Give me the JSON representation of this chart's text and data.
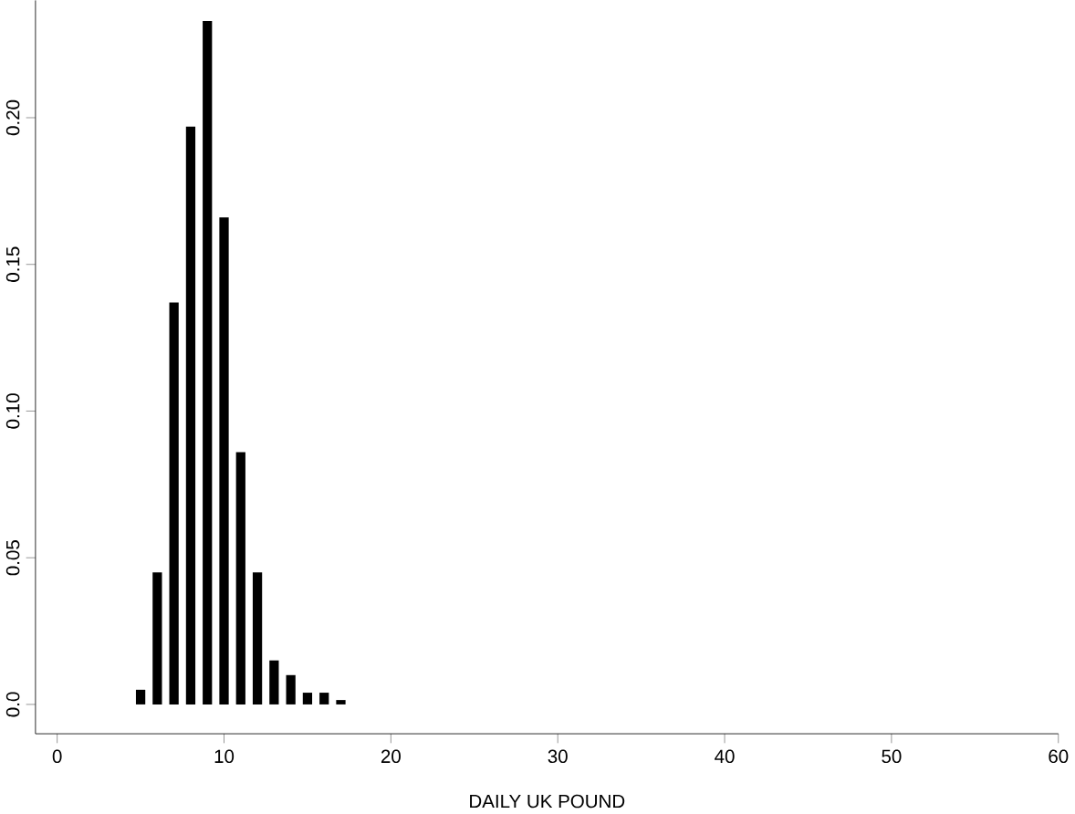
{
  "chart_data": {
    "type": "bar",
    "xlabel": "DAILY UK POUND",
    "x": [
      5,
      6,
      7,
      8,
      9,
      10,
      11,
      12,
      13,
      14,
      15,
      16,
      17
    ],
    "values": [
      0.005,
      0.045,
      0.137,
      0.197,
      0.233,
      0.166,
      0.086,
      0.045,
      0.015,
      0.01,
      0.004,
      0.004,
      0.0015
    ],
    "color": "#000000",
    "xlim": [
      -1.3,
      60
    ],
    "ylim": [
      -0.01,
      0.24
    ],
    "xticks": [
      0,
      10,
      20,
      30,
      40,
      50,
      60
    ],
    "yticks": [
      {
        "value": 0,
        "label": "0.0"
      },
      {
        "value": 0.05,
        "label": "0.05"
      },
      {
        "value": 0.1,
        "label": "0.10"
      },
      {
        "value": 0.15,
        "label": "0.15"
      },
      {
        "value": 0.2,
        "label": "0.20"
      }
    ]
  }
}
